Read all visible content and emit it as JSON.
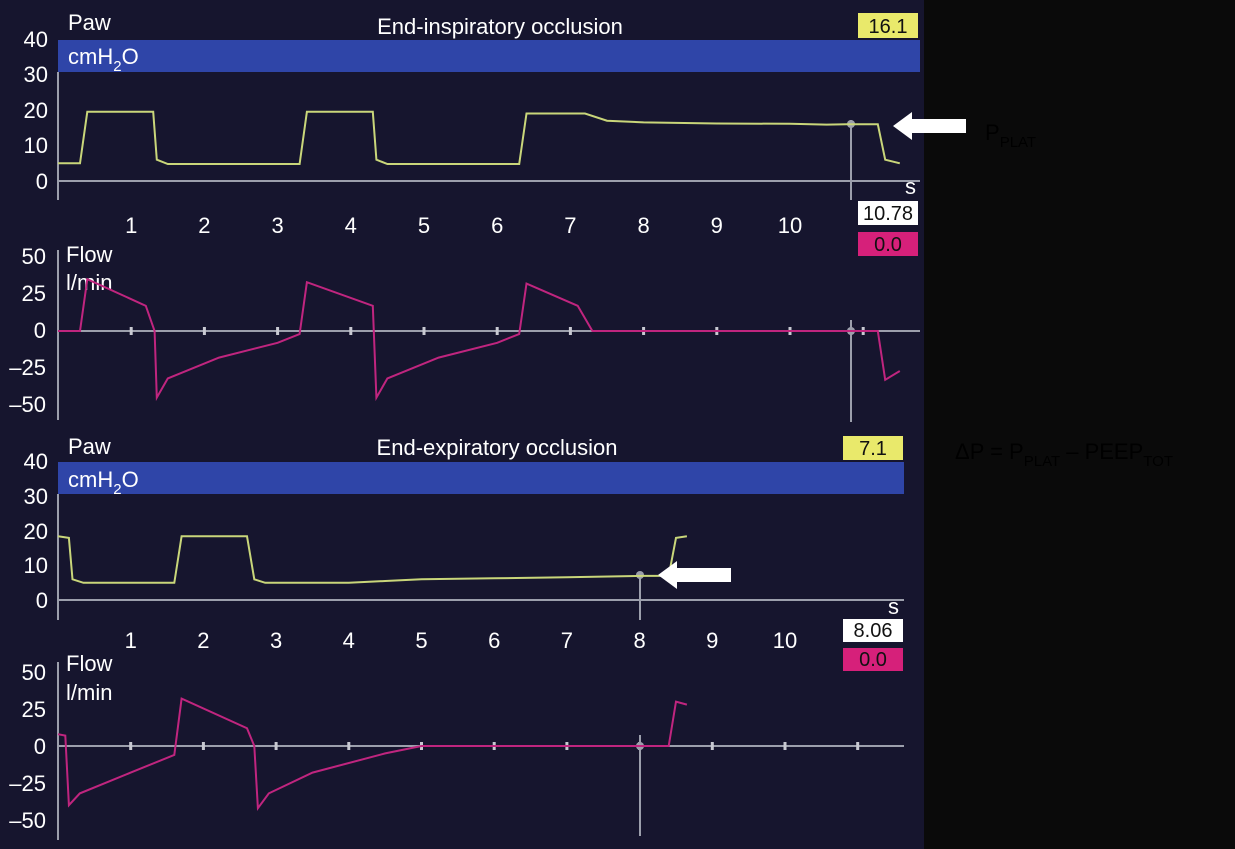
{
  "colors": {
    "screen_bg": "#16152e",
    "dark_panel": "#0a0a0a",
    "blue_band": "#2f45a8",
    "pressure_trace": "#c9d67a",
    "flow_trace": "#c0257f",
    "yellow_box": "#e9e96b",
    "pink_box": "#d6207a",
    "axis": "#9c9fac"
  },
  "top_pressure": {
    "title": "End-inspiratory occlusion",
    "param": "Paw",
    "unit_main": "cmH",
    "unit_sub": "2",
    "unit_end": "O",
    "axis_letter": "s",
    "reading": "16.1",
    "cursor_time": "10.78",
    "y_ticks": [
      "40",
      "30",
      "20",
      "10",
      "0"
    ],
    "x_ticks": [
      "1",
      "2",
      "3",
      "4",
      "5",
      "6",
      "7",
      "8",
      "9",
      "10"
    ]
  },
  "top_flow": {
    "param": "Flow",
    "unit": "l/min",
    "reading": "0.0",
    "y_ticks": [
      "50",
      "25",
      "0",
      "–25",
      "–50"
    ]
  },
  "bottom_pressure": {
    "title": "End-expiratory occlusion",
    "param": "Paw",
    "unit_main": "cmH",
    "unit_sub": "2",
    "unit_end": "O",
    "axis_letter": "s",
    "reading": "7.1",
    "cursor_time": "8.06",
    "y_ticks": [
      "40",
      "30",
      "20",
      "10",
      "0"
    ],
    "x_ticks": [
      "1",
      "2",
      "3",
      "4",
      "5",
      "6",
      "7",
      "8",
      "9",
      "10"
    ]
  },
  "bottom_flow": {
    "param": "Flow",
    "unit": "l/min",
    "reading": "0.0",
    "y_ticks": [
      "50",
      "25",
      "0",
      "–25",
      "–50"
    ]
  },
  "annotations": {
    "pplat_main": "P",
    "pplat_sub": "PLAT",
    "delta_main": "ΔP = P",
    "delta_sub1": "PLAT",
    "delta_mid": " – PEEP",
    "delta_sub2": "TOT"
  },
  "chart_data": [
    {
      "type": "line",
      "title": "End-inspiratory occlusion",
      "ylabel": "Paw cmH2O",
      "xlabel": "s",
      "xlim": [
        0,
        11.5
      ],
      "ylim": [
        0,
        40
      ],
      "series": [
        {
          "name": "Paw",
          "points": [
            [
              0,
              5
            ],
            [
              0.3,
              5
            ],
            [
              0.4,
              19.5
            ],
            [
              1.3,
              19.5
            ],
            [
              1.35,
              6
            ],
            [
              1.5,
              4.8
            ],
            [
              3.3,
              4.8
            ],
            [
              3.4,
              19.5
            ],
            [
              4.3,
              19.5
            ],
            [
              4.35,
              6
            ],
            [
              4.5,
              4.8
            ],
            [
              6.3,
              4.8
            ],
            [
              6.4,
              19
            ],
            [
              7.2,
              19
            ],
            [
              7.5,
              17
            ],
            [
              8,
              16.5
            ],
            [
              9,
              16.2
            ],
            [
              10,
              16.1
            ],
            [
              10.5,
              15.9
            ],
            [
              10.78,
              16
            ],
            [
              11.2,
              16
            ],
            [
              11.3,
              6
            ],
            [
              11.5,
              5
            ]
          ]
        }
      ]
    },
    {
      "type": "line",
      "ylabel": "Flow l/min",
      "xlim": [
        0,
        11.5
      ],
      "ylim": [
        -50,
        50
      ],
      "series": [
        {
          "name": "Flow",
          "points": [
            [
              0,
              0
            ],
            [
              0.3,
              0
            ],
            [
              0.4,
              35
            ],
            [
              1.2,
              17
            ],
            [
              1.32,
              0
            ],
            [
              1.35,
              -45
            ],
            [
              1.5,
              -32
            ],
            [
              2.2,
              -18
            ],
            [
              3,
              -8
            ],
            [
              3.3,
              -2
            ],
            [
              3.4,
              33
            ],
            [
              4.3,
              17
            ],
            [
              4.35,
              -45
            ],
            [
              4.5,
              -32
            ],
            [
              5.2,
              -18
            ],
            [
              6,
              -8
            ],
            [
              6.3,
              -2
            ],
            [
              6.4,
              32
            ],
            [
              7.1,
              17
            ],
            [
              7.3,
              0
            ],
            [
              7.5,
              0
            ],
            [
              11.2,
              0
            ],
            [
              11.3,
              -33
            ],
            [
              11.5,
              -27
            ]
          ]
        }
      ]
    },
    {
      "type": "line",
      "title": "End-expiratory occlusion",
      "ylabel": "Paw cmH2O",
      "xlabel": "s",
      "xlim": [
        0,
        11.5
      ],
      "ylim": [
        0,
        40
      ],
      "series": [
        {
          "name": "Paw",
          "points": [
            [
              0,
              18.5
            ],
            [
              0.15,
              18
            ],
            [
              0.2,
              6
            ],
            [
              0.35,
              5
            ],
            [
              1.6,
              5
            ],
            [
              1.7,
              18.5
            ],
            [
              2.6,
              18.5
            ],
            [
              2.7,
              6
            ],
            [
              2.85,
              5
            ],
            [
              4.0,
              5
            ],
            [
              4.5,
              5.5
            ],
            [
              5,
              6
            ],
            [
              6,
              6.3
            ],
            [
              7,
              6.6
            ],
            [
              8.06,
              7
            ],
            [
              8.4,
              7
            ],
            [
              8.5,
              18
            ],
            [
              8.65,
              18.5
            ]
          ]
        }
      ]
    },
    {
      "type": "line",
      "ylabel": "Flow l/min",
      "xlim": [
        0,
        11.5
      ],
      "ylim": [
        -50,
        50
      ],
      "series": [
        {
          "name": "Flow",
          "points": [
            [
              0,
              8
            ],
            [
              0.1,
              7
            ],
            [
              0.15,
              -40
            ],
            [
              0.3,
              -32
            ],
            [
              1,
              -18
            ],
            [
              1.6,
              -6
            ],
            [
              1.7,
              32
            ],
            [
              2.6,
              12
            ],
            [
              2.7,
              0
            ],
            [
              2.75,
              -42
            ],
            [
              2.9,
              -32
            ],
            [
              3.5,
              -18
            ],
            [
              4.5,
              -5
            ],
            [
              5,
              0
            ],
            [
              8.06,
              0
            ],
            [
              8.4,
              0
            ],
            [
              8.5,
              30
            ],
            [
              8.65,
              28
            ]
          ]
        }
      ]
    }
  ]
}
